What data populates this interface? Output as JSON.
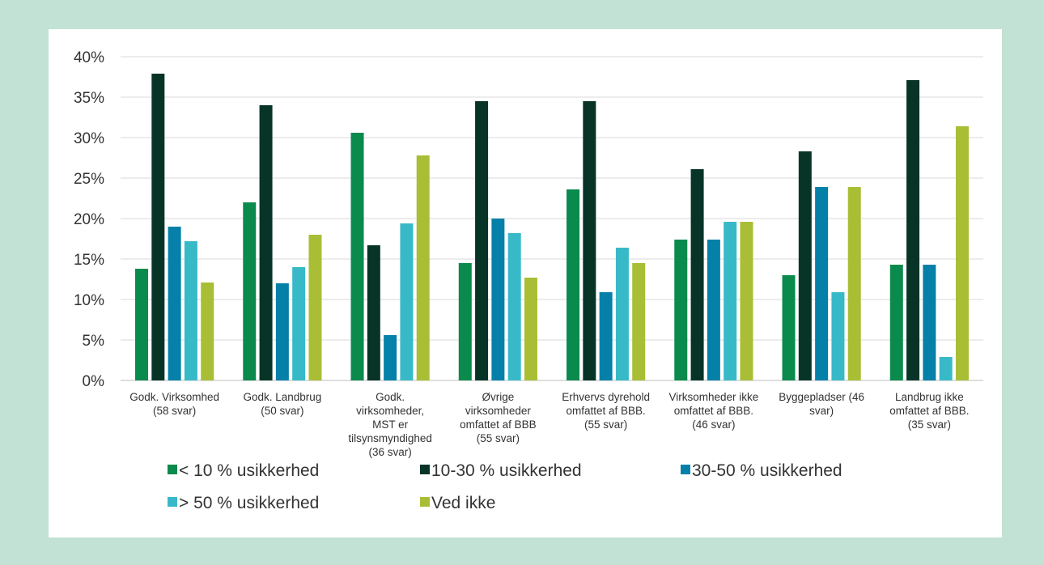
{
  "chart_data": {
    "type": "bar",
    "ylim": [
      0,
      40
    ],
    "y_ticks": [
      "0%",
      "5%",
      "10%",
      "15%",
      "20%",
      "25%",
      "30%",
      "35%",
      "40%"
    ],
    "grid": true,
    "legend_position": "bottom",
    "categories": [
      [
        "Godk. Virksomhed",
        "(58 svar)"
      ],
      [
        "Godk. Landbrug",
        "(50 svar)"
      ],
      [
        "Godk.",
        "virksomheder,",
        "MST er",
        "tilsynsmyndighed",
        "(36 svar)"
      ],
      [
        "Øvrige",
        "virksomheder",
        "omfattet af BBB",
        "(55 svar)"
      ],
      [
        "Erhvervs dyrehold",
        "omfattet af BBB.",
        "(55 svar)"
      ],
      [
        "Virksomheder ikke",
        "omfattet af BBB.",
        "(46 svar)"
      ],
      [
        "Byggepladser (46",
        "svar)"
      ],
      [
        "Landbrug ikke",
        "omfattet af BBB.",
        "(35 svar)"
      ]
    ],
    "series": [
      {
        "name": "< 10 % usikkerhed",
        "color": "#0a8a4c",
        "values": [
          13.8,
          22.0,
          30.6,
          14.5,
          23.6,
          17.4,
          13.0,
          14.3
        ]
      },
      {
        "name": "10-30 % usikkerhed",
        "color": "#083428",
        "values": [
          37.9,
          34.0,
          16.7,
          34.5,
          34.5,
          26.1,
          28.3,
          37.1
        ]
      },
      {
        "name": "30-50 % usikkerhed",
        "color": "#0580a8",
        "values": [
          19.0,
          12.0,
          5.6,
          20.0,
          10.9,
          17.4,
          23.9,
          14.3
        ]
      },
      {
        "name": "> 50 % usikkerhed",
        "color": "#38b9c8",
        "values": [
          17.2,
          14.0,
          19.4,
          18.2,
          16.4,
          19.6,
          10.9,
          2.9
        ]
      },
      {
        "name": "Ved ikke",
        "color": "#a9be35",
        "values": [
          12.1,
          18.0,
          27.8,
          12.7,
          14.5,
          19.6,
          23.9,
          31.4
        ]
      }
    ]
  }
}
